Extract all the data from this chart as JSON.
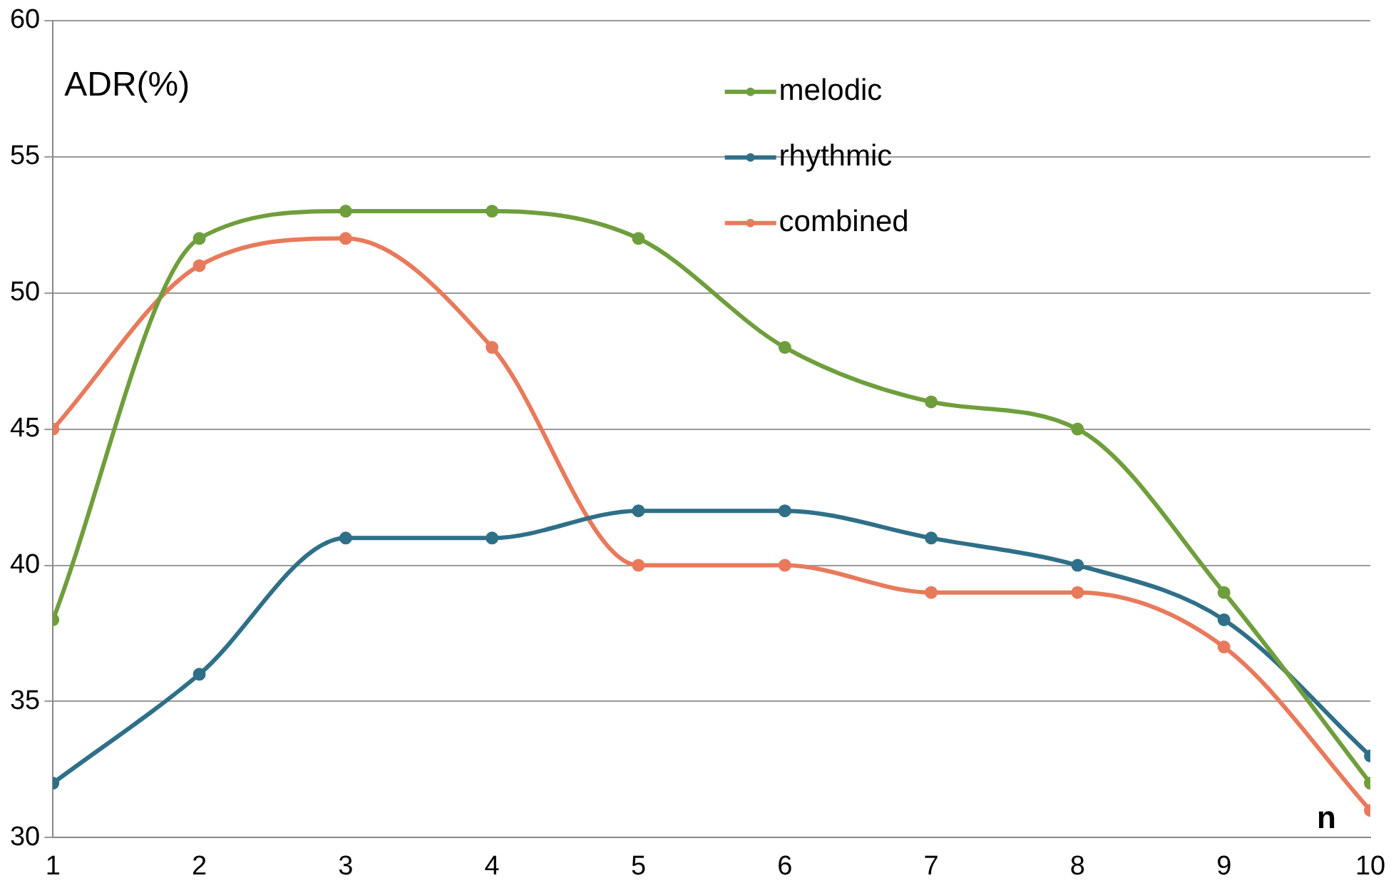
{
  "chart_data": {
    "type": "line",
    "ylabel": "ADR(%)",
    "xlabel": "n",
    "x": [
      1,
      2,
      3,
      4,
      5,
      6,
      7,
      8,
      9,
      10
    ],
    "series": [
      {
        "name": "melodic",
        "color": "#6f9e3c",
        "values": [
          38,
          52,
          53,
          53,
          52,
          48,
          46,
          45,
          39,
          32
        ]
      },
      {
        "name": "rhythmic",
        "color": "#2f6f88",
        "values": [
          32,
          36,
          41,
          41,
          42,
          42,
          41,
          40,
          38,
          33
        ]
      },
      {
        "name": "combined",
        "color": "#e87a5c",
        "values": [
          45,
          51,
          52,
          48,
          40,
          40,
          39,
          39,
          37,
          31
        ]
      }
    ],
    "xlim": [
      1,
      10
    ],
    "xticks": [
      1,
      2,
      3,
      4,
      5,
      6,
      7,
      8,
      9,
      10
    ],
    "ylim": [
      30,
      60
    ],
    "yticks": [
      30,
      35,
      40,
      45,
      50,
      55,
      60
    ],
    "grid": "y",
    "legend": "top right",
    "marker": "circle",
    "line_style": "solid"
  }
}
